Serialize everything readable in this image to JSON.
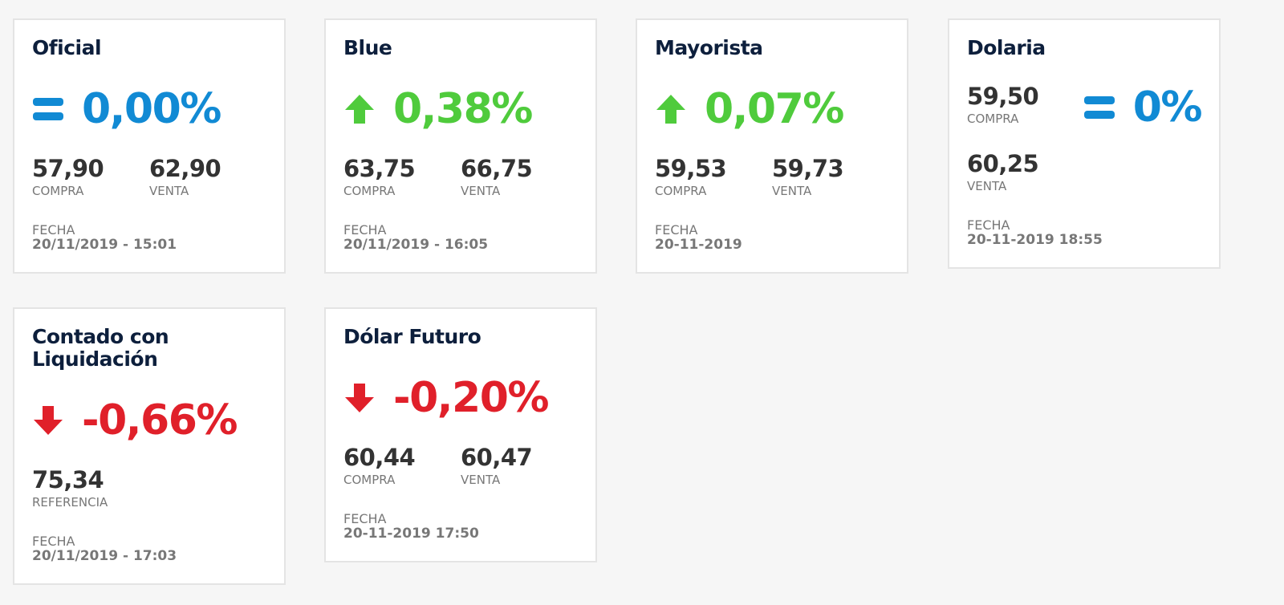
{
  "cards": [
    {
      "title": "Oficial",
      "change": "0,00%",
      "values": [
        {
          "value": "57,90",
          "label": "COMPRA"
        },
        {
          "value": "62,90",
          "label": "VENTA"
        }
      ],
      "date_label": "FECHA",
      "date": "20/11/2019 - 15:01"
    },
    {
      "title": "Blue",
      "change": "0,38%",
      "values": [
        {
          "value": "63,75",
          "label": "COMPRA"
        },
        {
          "value": "66,75",
          "label": "VENTA"
        }
      ],
      "date_label": "FECHA",
      "date": "20/11/2019 - 16:05"
    },
    {
      "title": "Mayorista",
      "change": "0,07%",
      "values": [
        {
          "value": "59,53",
          "label": "COMPRA"
        },
        {
          "value": "59,73",
          "label": "VENTA"
        }
      ],
      "date_label": "FECHA",
      "date": "20-11-2019"
    },
    {
      "title": "Dolaria",
      "change": "0%",
      "values": [
        {
          "value": "59,50",
          "label": "COMPRA"
        },
        {
          "value": "60,25",
          "label": "VENTA"
        }
      ],
      "date_label": "FECHA",
      "date": "20-11-2019 18:55"
    },
    {
      "title": "Contado con Liquidación",
      "change": "-0,66%",
      "values": [
        {
          "value": "75,34",
          "label": "REFERENCIA"
        }
      ],
      "date_label": "FECHA",
      "date": "20/11/2019 - 17:03"
    },
    {
      "title": "Dólar Futuro",
      "change": "-0,20%",
      "values": [
        {
          "value": "60,44",
          "label": "COMPRA"
        },
        {
          "value": "60,47",
          "label": "VENTA"
        }
      ],
      "date_label": "FECHA",
      "date": "20-11-2019 17:50"
    }
  ]
}
